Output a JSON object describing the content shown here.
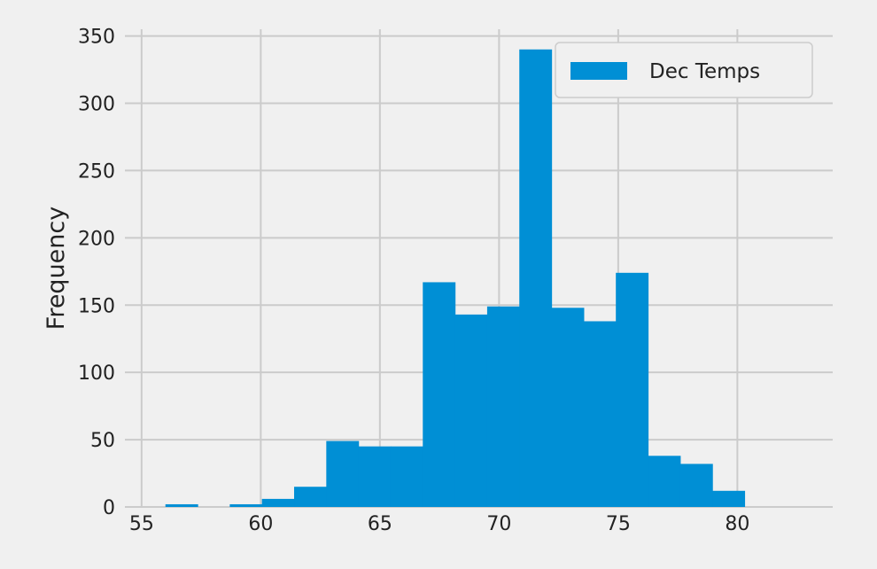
{
  "chart_data": {
    "type": "bar",
    "subtype": "histogram",
    "title": "",
    "xlabel": "",
    "ylabel": "Frequency",
    "xlim": [
      54.3,
      84.0
    ],
    "ylim": [
      0,
      355
    ],
    "xticks": [
      55,
      60,
      65,
      70,
      75,
      80
    ],
    "yticks": [
      0,
      50,
      100,
      150,
      200,
      250,
      300,
      350
    ],
    "grid": true,
    "legend": "top-right",
    "bin_edges": [
      56.0,
      57.35,
      58.7,
      60.05,
      61.4,
      62.75,
      64.1,
      65.45,
      66.8,
      68.15,
      69.5,
      70.85,
      72.2,
      73.55,
      74.9,
      76.25,
      77.6,
      78.95,
      80.3
    ],
    "series": [
      {
        "name": "Dec Temps",
        "color": "#008fd5",
        "values": [
          2,
          0,
          2,
          6,
          15,
          49,
          45,
          45,
          167,
          143,
          149,
          340,
          148,
          138,
          174,
          38,
          32,
          12
        ]
      }
    ],
    "colors": {
      "background": "#f0f0f0",
      "grid": "#cbcbcb",
      "bar": "#008fd5"
    }
  }
}
